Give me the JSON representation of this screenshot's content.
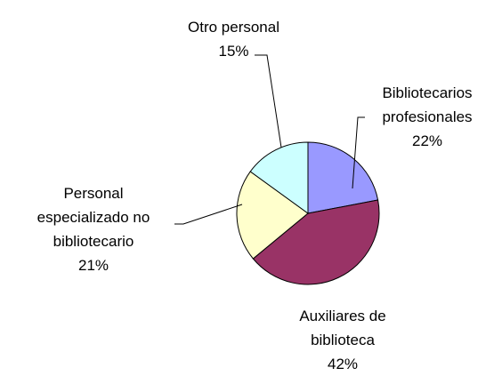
{
  "chart_data": {
    "type": "pie",
    "categories": [
      "Bibliotecarios profesionales",
      "Auxiliares de biblioteca",
      "Personal especializado no bibliotecario",
      "Otro personal"
    ],
    "values": [
      22,
      42,
      21,
      15
    ],
    "value_labels": [
      "22%",
      "42%",
      "21%",
      "15%"
    ],
    "colors": [
      "#9999ff",
      "#993366",
      "#ffffcc",
      "#ccffff"
    ]
  }
}
